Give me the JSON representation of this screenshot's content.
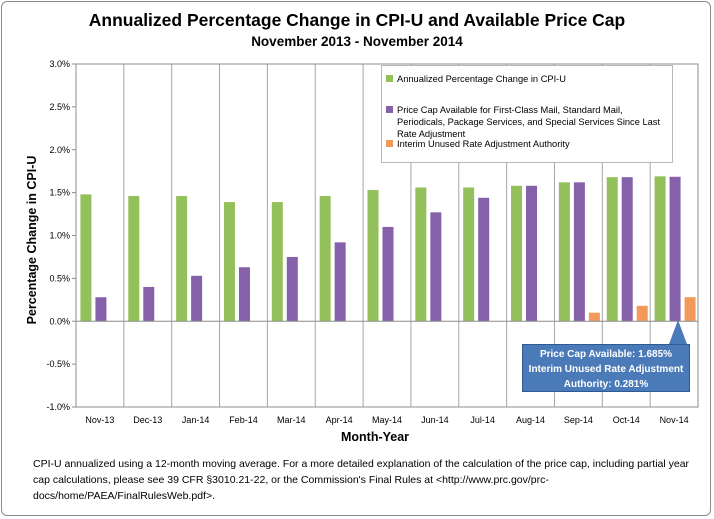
{
  "chart_data": {
    "type": "bar",
    "title": "Annualized Percentage Change in CPI-U and Available Price Cap",
    "subtitle": "November 2013 - November 2014",
    "xlabel": "Month-Year",
    "ylabel": "Percentage Change in CPI-U",
    "ylim": [
      -1.0,
      3.0
    ],
    "yticks": [
      "-1.0%",
      "-0.5%",
      "0.0%",
      "0.5%",
      "1.0%",
      "1.5%",
      "2.0%",
      "2.5%",
      "3.0%"
    ],
    "ytick_values": [
      -1.0,
      -0.5,
      0.0,
      0.5,
      1.0,
      1.5,
      2.0,
      2.5,
      3.0
    ],
    "grid": "vertical",
    "legend_position": "top-right",
    "categories": [
      "Nov-13",
      "Dec-13",
      "Jan-14",
      "Feb-14",
      "Mar-14",
      "Apr-14",
      "May-14",
      "Jun-14",
      "Jul-14",
      "Aug-14",
      "Sep-14",
      "Oct-14",
      "Nov-14"
    ],
    "series": [
      {
        "name": "Annualized Percentage Change in CPI-U",
        "color": "#93c05a",
        "values": [
          1.48,
          1.46,
          1.46,
          1.39,
          1.39,
          1.46,
          1.53,
          1.56,
          1.56,
          1.58,
          1.62,
          1.68,
          1.69
        ]
      },
      {
        "name": "Price Cap Available for First-Class Mail, Standard Mail, Periodicals, Package Services, and Special Services Since Last Rate Adjustment",
        "color": "#8461a8",
        "values": [
          0.28,
          0.4,
          0.53,
          0.63,
          0.75,
          0.92,
          1.1,
          1.27,
          1.44,
          1.58,
          1.62,
          1.68,
          1.685
        ]
      },
      {
        "name": "Interim Unused Rate Adjustment Authority",
        "color": "#f39a5a",
        "values": [
          null,
          null,
          null,
          null,
          null,
          null,
          null,
          null,
          null,
          null,
          0.1,
          0.18,
          0.281
        ]
      }
    ],
    "annotation": {
      "lines": [
        "Price Cap Available: 1.685%",
        "Interim Unused Rate Adjustment",
        "Authority: 0.281%"
      ]
    }
  },
  "footnote": "CPI-U annualized using a 12-month moving average.  For a more detailed explanation of the calculation of the price cap, including partial year cap calculations, please see 39 CFR §3010.21-22, or the Commission's Final Rules at <http://www.prc.gov/prc-docs/home/PAEA/FinalRulesWeb.pdf>."
}
